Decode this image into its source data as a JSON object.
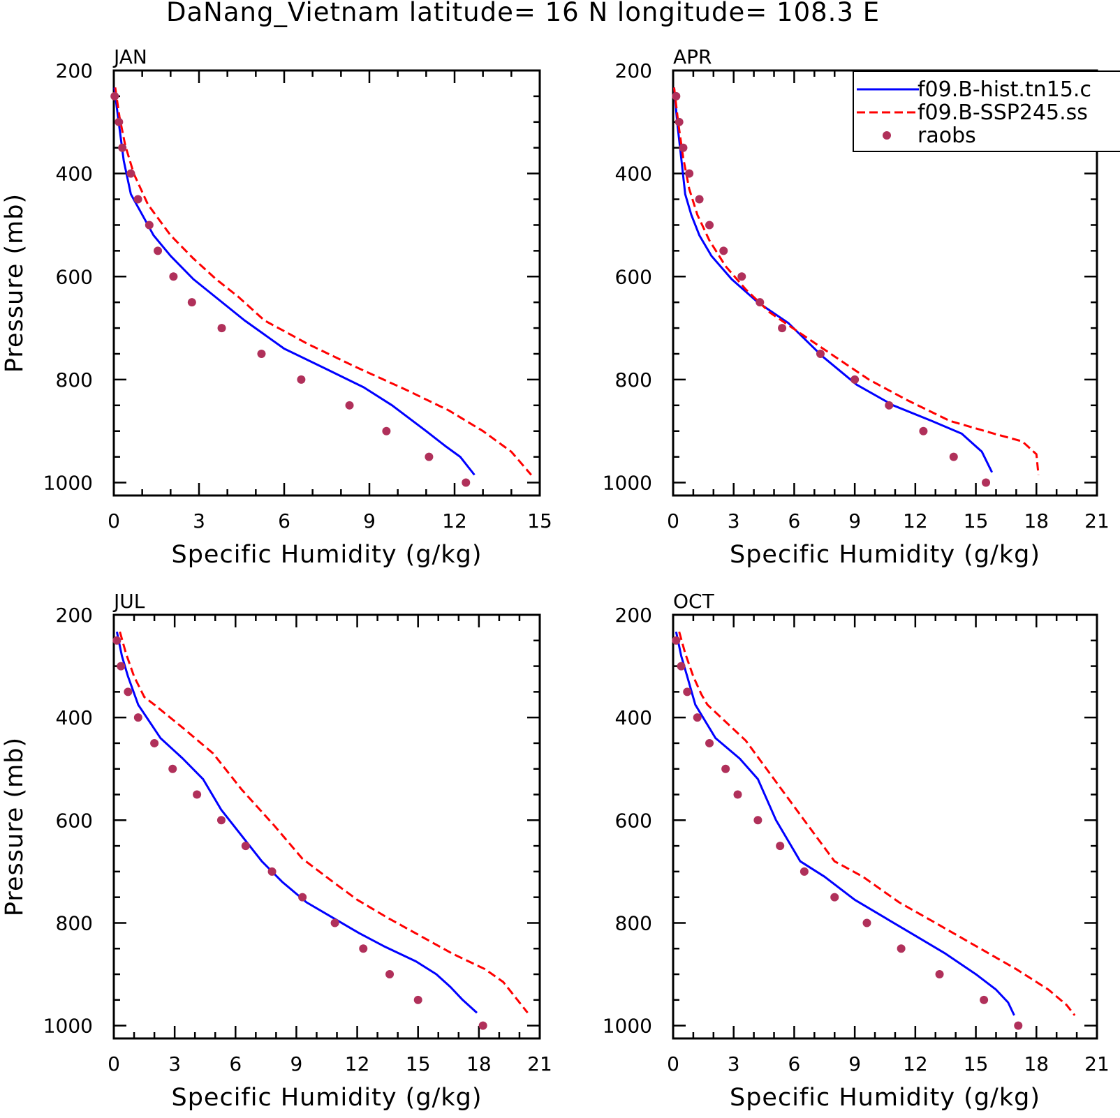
{
  "figure": {
    "title": "DaNang_Vietnam   latitude= 16 N longitude= 108.3 E"
  },
  "legend": {
    "entries": [
      {
        "label": "f09.B-hist.tn15.c",
        "color": "#0000ff",
        "style": "solid"
      },
      {
        "label": "f09.B-SSP245.ss",
        "color": "#ff0000",
        "style": "dashed"
      },
      {
        "label": "raobs",
        "color": "#b0305a",
        "style": "marker"
      }
    ]
  },
  "chart_data": [
    {
      "type": "line",
      "panel": "JAN",
      "xlabel": "Specific Humidity (g/kg)",
      "ylabel": "Pressure (mb)",
      "xlim": [
        0,
        15
      ],
      "xticks": [
        0,
        3,
        6,
        9,
        12,
        15
      ],
      "ylim": [
        1025,
        200
      ],
      "yticks": [
        200,
        400,
        600,
        800,
        1000
      ],
      "y_scale": "linear-inverted",
      "series": [
        {
          "name": "f09.B-hist.tn15.c",
          "color": "#0000ff",
          "style": "solid",
          "x": [
            0.02,
            0.1,
            0.22,
            0.35,
            0.6,
            1.0,
            1.4,
            2.0,
            2.8,
            3.7,
            4.6,
            6.0,
            7.5,
            8.8,
            9.8,
            11.0,
            11.7,
            12.2,
            12.7
          ],
          "y": [
            233,
            270,
            320,
            375,
            440,
            480,
            520,
            560,
            605,
            645,
            685,
            740,
            780,
            815,
            850,
            900,
            930,
            950,
            985
          ]
        },
        {
          "name": "f09.B-SSP245.ss",
          "color": "#ff0000",
          "style": "dashed",
          "x": [
            0.05,
            0.2,
            0.4,
            0.7,
            1.2,
            2.0,
            2.8,
            3.6,
            4.4,
            5.3,
            6.8,
            8.5,
            10.3,
            11.8,
            13.0,
            14.0,
            14.7
          ],
          "y": [
            233,
            290,
            345,
            400,
            460,
            520,
            565,
            605,
            640,
            685,
            730,
            775,
            820,
            860,
            900,
            940,
            985
          ]
        },
        {
          "name": "raobs",
          "color": "#b0305a",
          "style": "marker",
          "x": [
            0.03,
            0.18,
            0.3,
            0.6,
            0.85,
            1.25,
            1.55,
            2.1,
            2.75,
            3.8,
            5.2,
            6.6,
            8.3,
            9.6,
            11.1,
            12.4
          ],
          "y": [
            250,
            300,
            350,
            400,
            450,
            500,
            550,
            600,
            650,
            700,
            750,
            800,
            850,
            900,
            950,
            1000
          ]
        }
      ]
    },
    {
      "type": "line",
      "panel": "APR",
      "xlabel": "Specific Humidity (g/kg)",
      "ylabel": "",
      "xlim": [
        0,
        21
      ],
      "xticks": [
        0,
        3,
        6,
        9,
        12,
        15,
        18,
        21
      ],
      "ylim": [
        1025,
        200
      ],
      "yticks": [
        200,
        400,
        600,
        800,
        1000
      ],
      "y_scale": "linear-inverted",
      "series": [
        {
          "name": "f09.B-hist.tn15.c",
          "color": "#0000ff",
          "style": "solid",
          "x": [
            0.05,
            0.2,
            0.4,
            0.6,
            0.9,
            1.3,
            1.9,
            2.9,
            4.2,
            5.7,
            7.4,
            9.1,
            10.9,
            12.8,
            14.3,
            15.3,
            15.8
          ],
          "y": [
            233,
            300,
            370,
            440,
            480,
            520,
            560,
            605,
            650,
            690,
            755,
            810,
            850,
            880,
            905,
            940,
            980
          ]
        },
        {
          "name": "f09.B-SSP245.ss",
          "color": "#ff0000",
          "style": "dashed",
          "x": [
            0.05,
            0.25,
            0.5,
            0.8,
            1.2,
            1.8,
            2.6,
            3.6,
            4.8,
            6.3,
            8.0,
            9.7,
            11.6,
            13.7,
            15.9,
            17.3,
            18.0,
            18.1
          ],
          "y": [
            233,
            300,
            370,
            430,
            480,
            530,
            580,
            625,
            670,
            710,
            755,
            800,
            840,
            880,
            905,
            920,
            945,
            985
          ]
        },
        {
          "name": "raobs",
          "color": "#b0305a",
          "style": "marker",
          "x": [
            0.15,
            0.3,
            0.5,
            0.8,
            1.3,
            1.8,
            2.5,
            3.4,
            4.3,
            5.4,
            7.3,
            9.0,
            10.7,
            12.4,
            13.9,
            15.5
          ],
          "y": [
            250,
            300,
            350,
            400,
            450,
            500,
            550,
            600,
            650,
            700,
            750,
            800,
            850,
            900,
            950,
            1000
          ]
        }
      ]
    },
    {
      "type": "line",
      "panel": "JUL",
      "xlabel": "Specific Humidity (g/kg)",
      "ylabel": "Pressure (mb)",
      "xlim": [
        0,
        21
      ],
      "xticks": [
        0,
        3,
        6,
        9,
        12,
        15,
        18,
        21
      ],
      "ylim": [
        1025,
        200
      ],
      "yticks": [
        200,
        400,
        600,
        800,
        1000
      ],
      "y_scale": "linear-inverted",
      "series": [
        {
          "name": "f09.B-hist.tn15.c",
          "color": "#0000ff",
          "style": "solid",
          "x": [
            0.15,
            0.4,
            0.7,
            1.2,
            2.3,
            3.4,
            4.4,
            5.3,
            6.4,
            7.3,
            8.3,
            9.5,
            10.8,
            12.1,
            13.3,
            14.9,
            15.9,
            16.6,
            17.2,
            17.9
          ],
          "y": [
            233,
            280,
            320,
            375,
            440,
            480,
            520,
            580,
            635,
            680,
            720,
            760,
            790,
            820,
            845,
            875,
            900,
            925,
            950,
            975
          ]
        },
        {
          "name": "f09.B-SSP245.ss",
          "color": "#ff0000",
          "style": "dashed",
          "x": [
            0.3,
            0.6,
            1.0,
            1.5,
            2.0,
            3.4,
            4.9,
            6.3,
            7.9,
            9.3,
            10.8,
            12.0,
            13.5,
            15.1,
            16.7,
            18.3,
            19.2,
            19.8,
            20.4
          ],
          "y": [
            233,
            275,
            320,
            360,
            375,
            420,
            470,
            540,
            610,
            675,
            720,
            755,
            790,
            825,
            860,
            890,
            915,
            945,
            975
          ]
        },
        {
          "name": "raobs",
          "color": "#b0305a",
          "style": "marker",
          "x": [
            0.15,
            0.35,
            0.7,
            1.2,
            2.0,
            2.9,
            4.1,
            5.3,
            6.5,
            7.8,
            9.3,
            10.9,
            12.3,
            13.6,
            15.0,
            18.2
          ],
          "y": [
            250,
            300,
            350,
            400,
            450,
            500,
            550,
            600,
            650,
            700,
            750,
            800,
            850,
            900,
            950,
            1000
          ]
        }
      ]
    },
    {
      "type": "line",
      "panel": "OCT",
      "xlabel": "Specific Humidity (g/kg)",
      "ylabel": "",
      "xlim": [
        0,
        21
      ],
      "xticks": [
        0,
        3,
        6,
        9,
        12,
        15,
        18,
        21
      ],
      "ylim": [
        1025,
        200
      ],
      "yticks": [
        200,
        400,
        600,
        800,
        1000
      ],
      "y_scale": "linear-inverted",
      "series": [
        {
          "name": "f09.B-hist.tn15.c",
          "color": "#0000ff",
          "style": "solid",
          "x": [
            0.15,
            0.4,
            0.7,
            1.1,
            2.1,
            3.3,
            4.2,
            5.1,
            6.3,
            7.5,
            9.0,
            10.5,
            12.0,
            13.5,
            15.0,
            16.0,
            16.6,
            16.9
          ],
          "y": [
            233,
            280,
            320,
            375,
            440,
            480,
            520,
            600,
            680,
            710,
            755,
            790,
            825,
            860,
            900,
            930,
            955,
            980
          ]
        },
        {
          "name": "f09.B-SSP245.ss",
          "color": "#ff0000",
          "style": "dashed",
          "x": [
            0.3,
            0.6,
            1.0,
            1.4,
            1.7,
            3.6,
            5.0,
            6.4,
            8.0,
            9.4,
            11.2,
            13.0,
            15.0,
            17.0,
            18.6,
            19.5,
            19.9
          ],
          "y": [
            233,
            275,
            320,
            355,
            375,
            445,
            520,
            595,
            680,
            710,
            760,
            800,
            845,
            890,
            930,
            960,
            980
          ]
        },
        {
          "name": "raobs",
          "color": "#b0305a",
          "style": "marker",
          "x": [
            0.15,
            0.4,
            0.7,
            1.2,
            1.8,
            2.6,
            3.2,
            4.2,
            5.3,
            6.5,
            8.0,
            9.6,
            11.3,
            13.2,
            15.4,
            17.1
          ],
          "y": [
            250,
            300,
            350,
            400,
            450,
            500,
            550,
            600,
            650,
            700,
            750,
            800,
            850,
            900,
            950,
            1000
          ]
        }
      ]
    }
  ]
}
